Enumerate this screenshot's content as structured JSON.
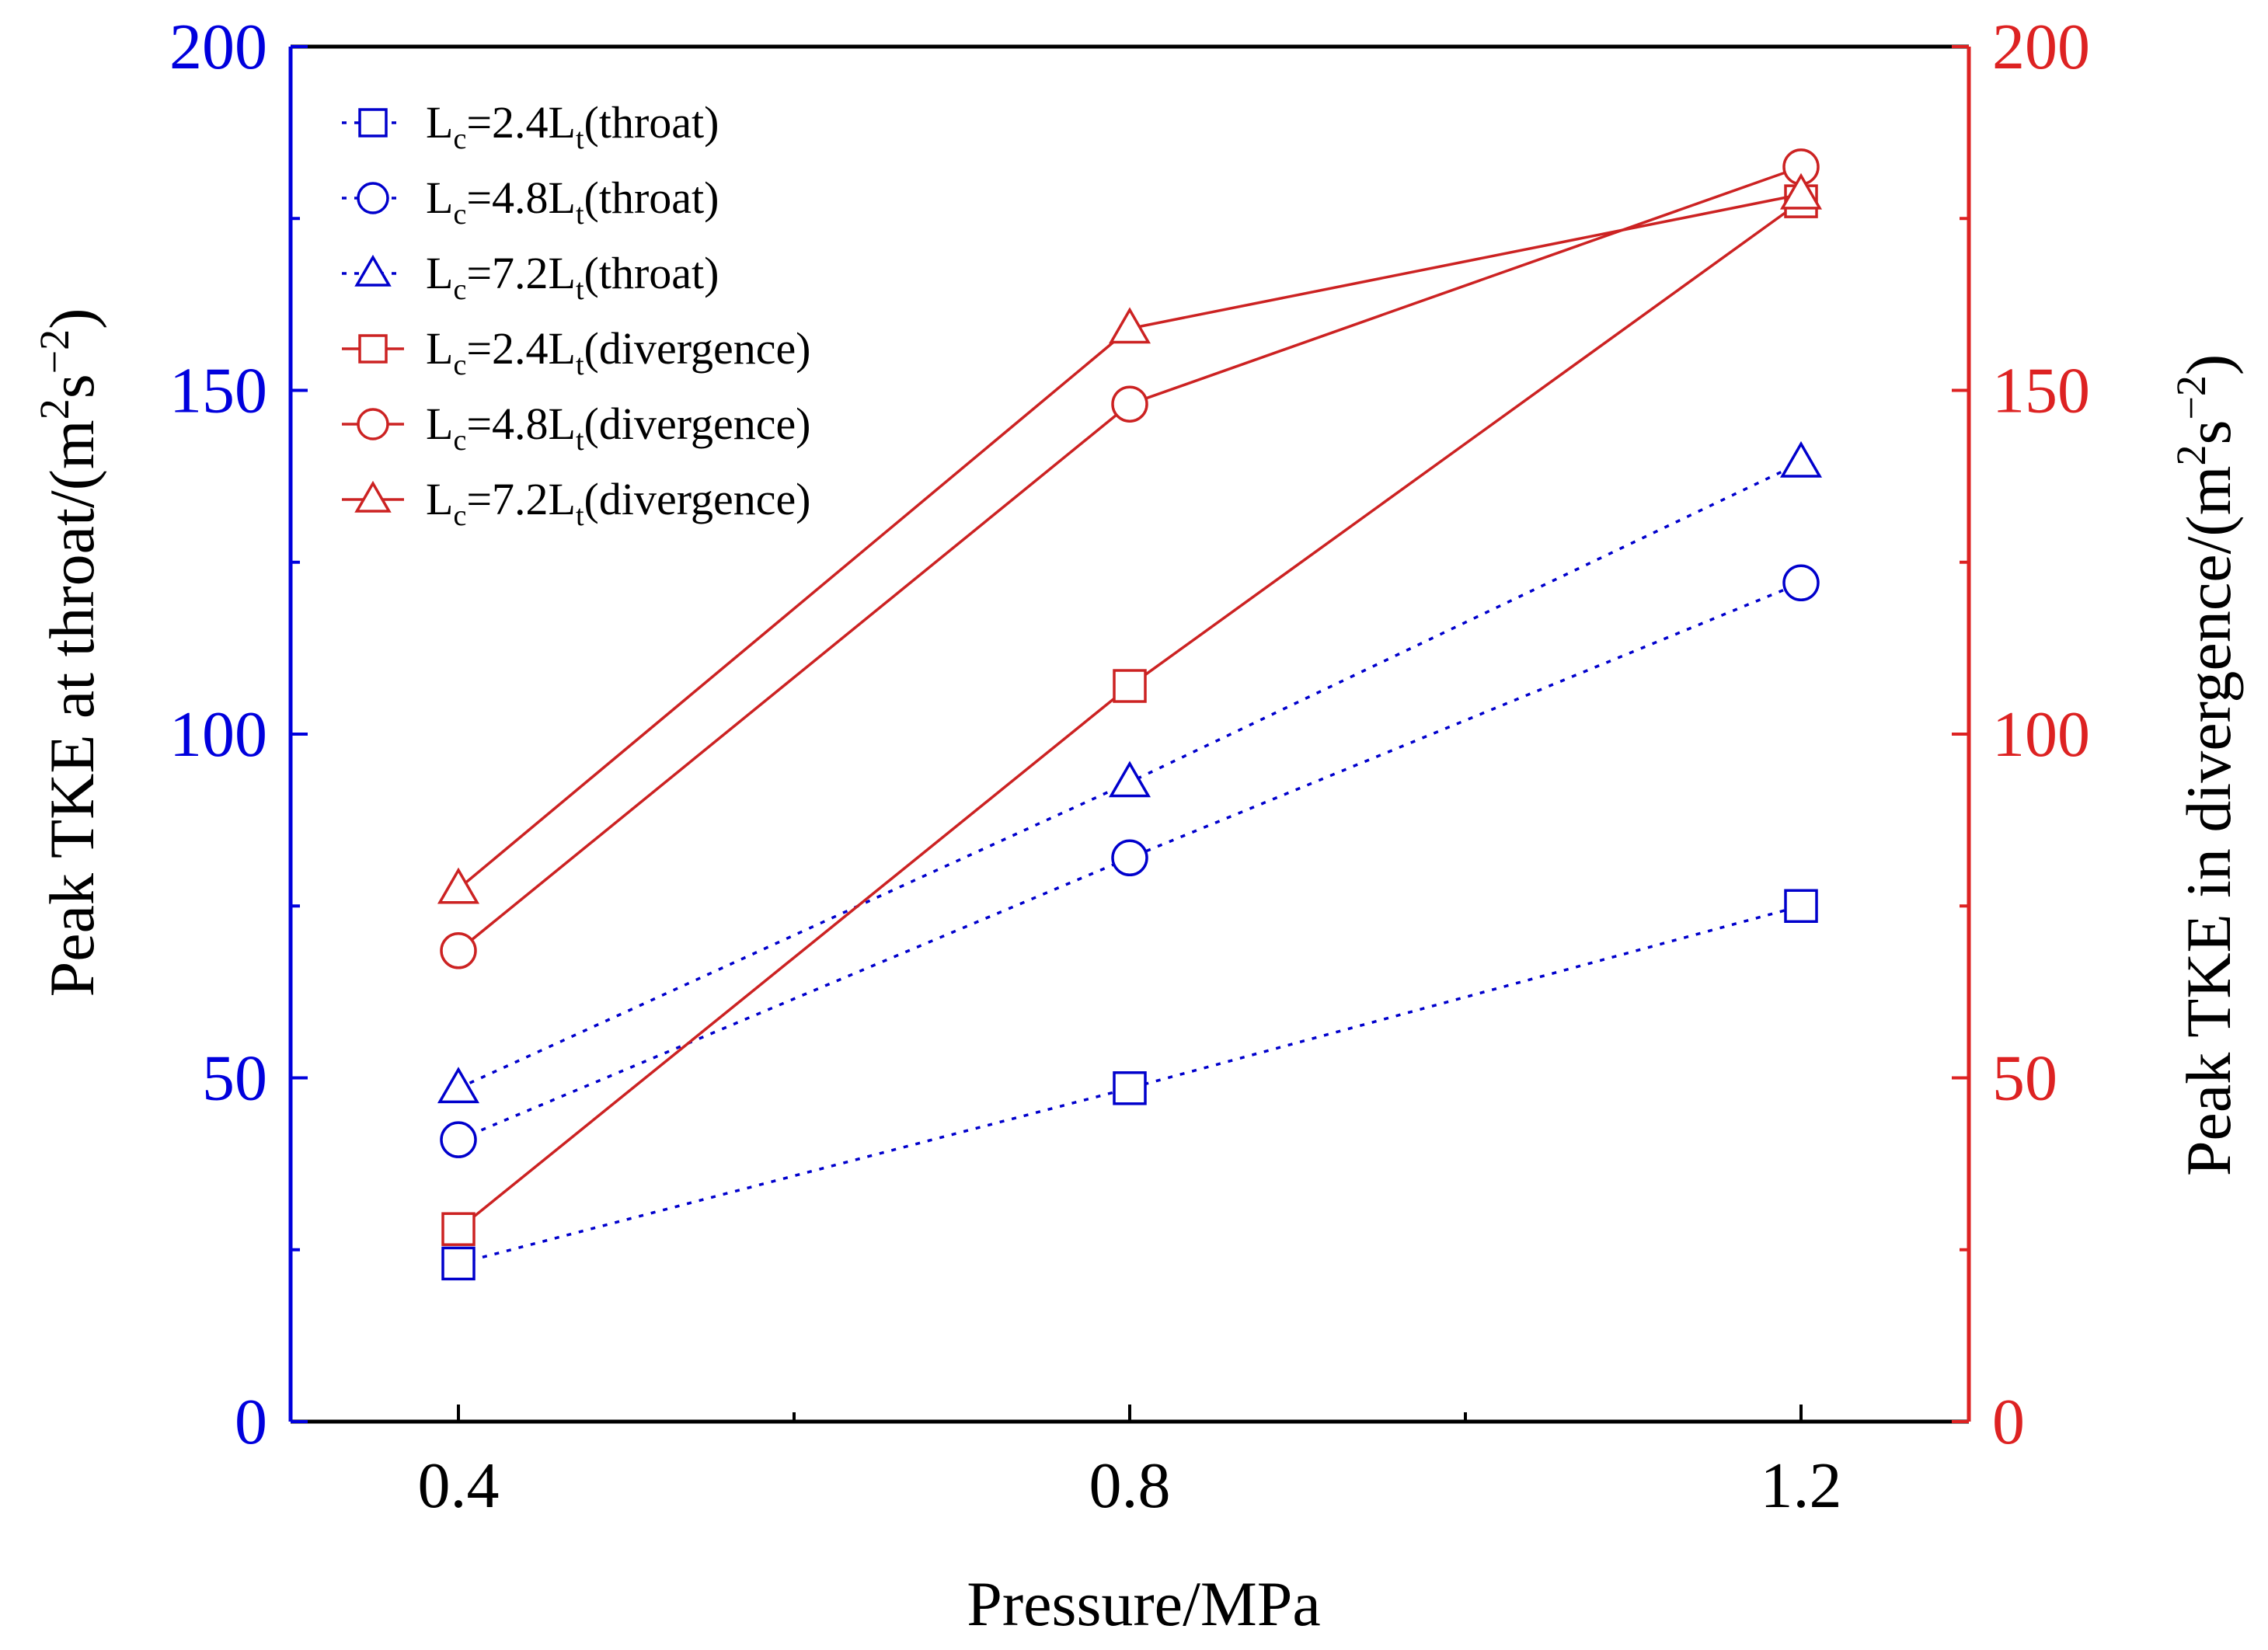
{
  "chart_data": {
    "type": "line",
    "xlabel": "Pressure/MPa",
    "x": [
      0.4,
      0.8,
      1.2
    ],
    "x_tick_labels": [
      "0.4",
      "0.8",
      "1.2"
    ],
    "xlim": [
      0.3,
      1.3
    ],
    "y_left": {
      "label_main": "Peak TKE at throat/(m",
      "label_sup1": "2",
      "label_mid": "s",
      "label_sup2": "−2",
      "label_end": ")",
      "ylim": [
        0,
        200
      ],
      "ticks": [
        "0",
        "50",
        "100",
        "150",
        "200"
      ],
      "color": "#0000dd"
    },
    "y_right": {
      "label_main": "Peak TKE in divergence/(m",
      "label_sup1": "2",
      "label_mid": "s",
      "label_sup2": "−2",
      "label_end": ")",
      "ylim": [
        0,
        200
      ],
      "ticks": [
        "0",
        "50",
        "100",
        "150",
        "200"
      ],
      "color": "#dd2222"
    },
    "legend_placement": "top-left",
    "series": [
      {
        "name_base": "L",
        "name_sub1": "c",
        "name_mid": "=2.4L",
        "name_sub2": "t",
        "name_end": "(throat)",
        "marker": "square",
        "style": "dotted",
        "axis": "left",
        "color": "#0000cc",
        "values": [
          23,
          48.5,
          75
        ]
      },
      {
        "name_base": "L",
        "name_sub1": "c",
        "name_mid": "=4.8L",
        "name_sub2": "t",
        "name_end": "(throat)",
        "marker": "circle",
        "style": "dotted",
        "axis": "left",
        "color": "#0000cc",
        "values": [
          41,
          82,
          122
        ]
      },
      {
        "name_base": "L",
        "name_sub1": "c",
        "name_mid": "=7.2L",
        "name_sub2": "t",
        "name_end": "(throat)",
        "marker": "triangle",
        "style": "dotted",
        "axis": "left",
        "color": "#0000cc",
        "values": [
          48.5,
          93,
          139.5
        ]
      },
      {
        "name_base": "L",
        "name_sub1": "c",
        "name_mid": "=2.4L",
        "name_sub2": "t",
        "name_end": "(divergence)",
        "marker": "square",
        "style": "solid",
        "axis": "right",
        "color": "#cc2222",
        "values": [
          28,
          107,
          177.5
        ]
      },
      {
        "name_base": "L",
        "name_sub1": "c",
        "name_mid": "=4.8L",
        "name_sub2": "t",
        "name_end": "(divergence)",
        "marker": "circle",
        "style": "solid",
        "axis": "right",
        "color": "#cc2222",
        "values": [
          68.5,
          148,
          182.5
        ]
      },
      {
        "name_base": "L",
        "name_sub1": "c",
        "name_mid": "=7.2L",
        "name_sub2": "t",
        "name_end": "(divergence)",
        "marker": "triangle",
        "style": "solid",
        "axis": "right",
        "color": "#cc2222",
        "values": [
          77.5,
          159,
          178.5
        ]
      }
    ]
  }
}
